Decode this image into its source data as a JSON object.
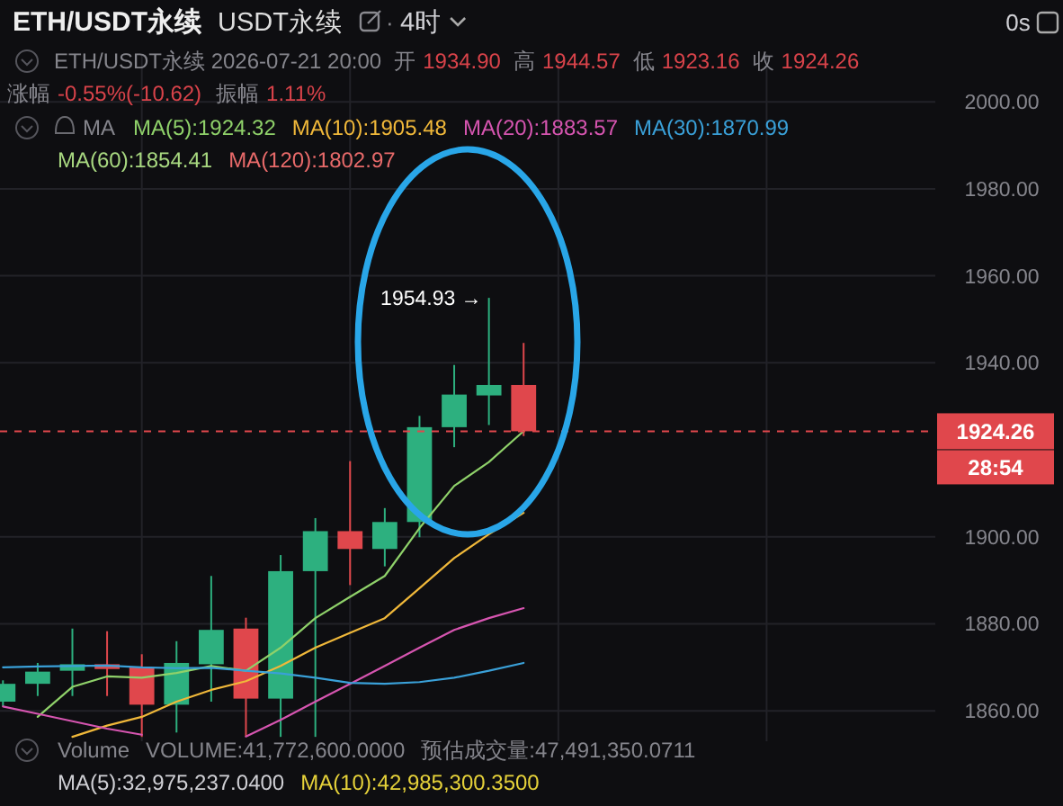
{
  "chart_data": {
    "type": "candlestick",
    "title": "ETH/USDT永续",
    "subtitle": "USDT永续",
    "categories": [
      null,
      null,
      null,
      null,
      null,
      null,
      null,
      null,
      null,
      null,
      null,
      null,
      null,
      null,
      null,
      null
    ],
    "ohlc": [
      [
        1862.1,
        1867.0,
        1861.0,
        1866.2
      ],
      [
        1866.2,
        1871.0,
        1863.4,
        1869.0
      ],
      [
        1869.2,
        1878.9,
        1863.4,
        1870.7
      ],
      [
        1870.7,
        1878.3,
        1863.4,
        1869.6
      ],
      [
        1870.0,
        1873.0,
        1854.0,
        1861.4
      ],
      [
        1861.4,
        1876.0,
        1855.0,
        1871.0
      ],
      [
        1870.7,
        1891.0,
        1862.1,
        1878.6
      ],
      [
        1878.9,
        1881.4,
        1854.0,
        1862.8
      ],
      [
        1862.8,
        1895.8,
        1854.0,
        1892.1
      ],
      [
        1892.1,
        1904.3,
        1854.0,
        1901.3
      ],
      [
        1901.3,
        1917.4,
        1888.9,
        1897.2
      ],
      [
        1897.2,
        1906.6,
        1893.2,
        1903.4
      ],
      [
        1903.4,
        1927.8,
        1899.9,
        1925.2
      ],
      [
        1925.2,
        1939.5,
        1920.6,
        1932.7
      ],
      [
        1932.5,
        1954.93,
        1925.7,
        1934.9
      ],
      [
        1934.9,
        1944.57,
        1923.16,
        1924.26
      ]
    ],
    "colors": [
      "#2db07f",
      "#2db07f",
      "#2db07f",
      "#e0474c",
      "#e0474c",
      "#2db07f",
      "#2db07f",
      "#e0474c",
      "#2db07f",
      "#2db07f",
      "#e0474c",
      "#2db07f",
      "#2db07f",
      "#2db07f",
      "#2db07f",
      "#e0474c"
    ],
    "series": [
      {
        "name": "MA(5):1924.32",
        "type": "line",
        "color": "#8fd16a",
        "values": [
          null,
          1858.6,
          1865.5,
          1867.9,
          1867.6,
          1868.7,
          1870.3,
          1869.2,
          1874.5,
          1881.3,
          1886.2,
          1891.0,
          1902.0,
          1911.7,
          1917.2,
          1924.3
        ]
      },
      {
        "name": "MA(10):1905.48",
        "type": "line",
        "color": "#f0b83a",
        "values": [
          null,
          null,
          1854.0,
          1856.6,
          1858.6,
          1862.1,
          1864.8,
          1866.8,
          1870.3,
          1874.5,
          1877.9,
          1881.3,
          1888.2,
          1895.1,
          1900.6,
          1905.5
        ]
      },
      {
        "name": "MA(20):1883.57",
        "type": "line",
        "color": "#d655b0",
        "values": [
          1861.0,
          1859.3,
          1857.6,
          1855.9,
          1854.5,
          null,
          null,
          1854.1,
          1857.9,
          1862.1,
          1866.2,
          1870.3,
          1874.5,
          1878.6,
          1881.3,
          1883.6
        ]
      },
      {
        "name": "MA(30):1870.99",
        "type": "line",
        "color": "#3aa0d8",
        "values": [
          1870.0,
          1870.2,
          1870.3,
          1870.4,
          1870.0,
          1869.8,
          1869.9,
          1869.2,
          1868.6,
          1867.6,
          1866.4,
          1866.2,
          1866.6,
          1867.6,
          1869.2,
          1871.0
        ]
      }
    ],
    "ylim": [
      1853,
      2011
    ],
    "yticks": [
      {
        "value": 1860,
        "label": "1860.00"
      },
      {
        "value": 1880,
        "label": "1880.00"
      },
      {
        "value": 1900,
        "label": "1900.00"
      },
      {
        "value": 1940,
        "label": "1940.00"
      },
      {
        "value": 1960,
        "label": "1960.00"
      },
      {
        "value": 1980,
        "label": "1980.00"
      },
      {
        "value": 2000,
        "label": "2000.00"
      }
    ],
    "grid": true,
    "legend": "top",
    "ref_lines": [
      {
        "axis": "y",
        "value": 1924.26,
        "label": "1924.26",
        "color": "#e0474c",
        "line_style": "dashed"
      }
    ],
    "annotations": [
      "1954.93 →",
      "0s",
      "4时",
      "ETH/USDT永续  2026-07-21 20:00",
      "开",
      "1934.90",
      "高",
      "1944.57",
      "低",
      "1923.16",
      "收",
      "1924.26",
      "涨幅",
      "-0.55%(-10.62)",
      "振幅",
      "1.11%",
      "MA",
      "MA(60):1854.41",
      "MA(120):1802.97",
      "Volume",
      "VOLUME:41,772,600.0000",
      "预估成交量:47,491,350.0711",
      "MA(5):32,975,237.0400",
      "MA(10):42,985,300.3500",
      "28:54",
      "·"
    ]
  }
}
